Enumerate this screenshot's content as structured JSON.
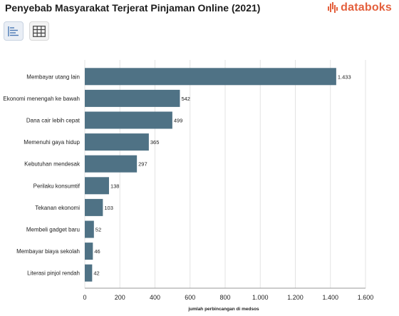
{
  "header": {
    "title": "Penyebab Masyarakat Terjerat Pinjaman Online (2021)",
    "brand": "databoks"
  },
  "toolbar": {
    "buttons": [
      {
        "icon": "bar-chart-icon",
        "active": true
      },
      {
        "icon": "table-grid-icon",
        "active": false
      }
    ]
  },
  "colors": {
    "bar": "#4f7285",
    "brand": "#e4603d"
  },
  "chart_data": {
    "type": "bar",
    "orientation": "horizontal",
    "title": "Penyebab Masyarakat Terjerat Pinjaman Online (2021)",
    "xlabel": "jumlah perbincangan di medsos",
    "ylabel": "",
    "categories": [
      "Membayar utang lain",
      "Ekonomi menengah ke bawah",
      "Dana cair lebih cepat",
      "Memenuhi gaya hidup",
      "Kebutuhan mendesak",
      "Perilaku konsumtif",
      "Tekanan ekonomi",
      "Membeli gadget baru",
      "Membayar biaya sekolah",
      "Literasi pinjol rendah"
    ],
    "values": [
      1433,
      542,
      499,
      365,
      297,
      138,
      103,
      52,
      46,
      42
    ],
    "value_labels": [
      "1.433",
      "542",
      "499",
      "365",
      "297",
      "138",
      "103",
      "52",
      "46",
      "42"
    ],
    "xlim": [
      0,
      1600
    ],
    "xticks": [
      0,
      200,
      400,
      600,
      800,
      1000,
      1200,
      1400,
      1600
    ],
    "xtick_labels": [
      "0",
      "200",
      "400",
      "600",
      "800",
      "1.000",
      "1.200",
      "1.400",
      "1.600"
    ],
    "grid": "vertical",
    "legend": "none"
  }
}
